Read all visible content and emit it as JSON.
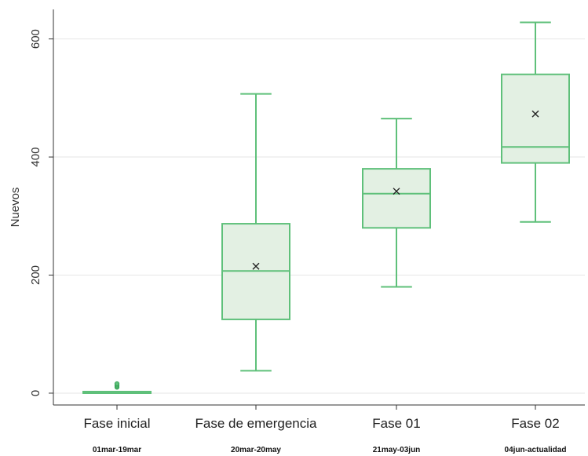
{
  "chart_data": {
    "type": "box",
    "ylabel": "Nuevos",
    "xlabel": "",
    "ylim": [
      -20,
      650
    ],
    "yticks": [
      "0",
      "200",
      "400",
      "600"
    ],
    "ytick_values": [
      0,
      200,
      400,
      600
    ],
    "grid": "horizontal",
    "colors": {
      "box_fill": "#e3f0e3",
      "box_stroke": "#5fc07a",
      "mean_marker": "#222222",
      "grid": "#e6e6e6",
      "axis": "#333333"
    },
    "categories": [
      "Fase inicial",
      "Fase de emergencia",
      "Fase 01",
      "Fase 02"
    ],
    "sublabels": [
      "01mar-19mar",
      "20mar-20may",
      "21may-03jun",
      "04jun-actualidad"
    ],
    "boxes": [
      {
        "whisker_low": 0,
        "q1": 0,
        "median": 0,
        "q3": 1,
        "whisker_high": 2,
        "mean": 1,
        "outliers": [
          10,
          12,
          14,
          16
        ]
      },
      {
        "whisker_low": 38,
        "q1": 125,
        "median": 207,
        "q3": 287,
        "whisker_high": 507,
        "mean": 215
      },
      {
        "whisker_low": 180,
        "q1": 280,
        "median": 338,
        "q3": 380,
        "whisker_high": 465,
        "mean": 342
      },
      {
        "whisker_low": 290,
        "q1": 390,
        "median": 417,
        "q3": 540,
        "whisker_high": 628,
        "mean": 473
      }
    ]
  }
}
